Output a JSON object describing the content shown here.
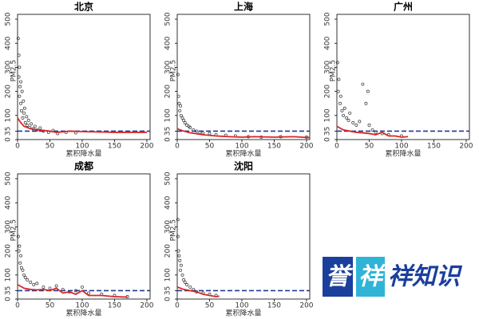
{
  "chart_data": [
    {
      "type": "scatter",
      "title": "北京",
      "x_label": "累积降水量",
      "y_label": "PM2.5",
      "color": "#333333",
      "xlim": [
        0,
        205
      ],
      "ylim": [
        0,
        520
      ],
      "xticks": [
        0,
        50,
        100,
        150,
        200
      ],
      "yticks": [
        0,
        35,
        100,
        200,
        300,
        400,
        500
      ],
      "x": [
        1,
        2,
        2,
        3,
        3,
        4,
        5,
        5,
        6,
        7,
        8,
        9,
        10,
        11,
        12,
        14,
        15,
        17,
        19,
        21,
        24,
        27,
        30,
        35,
        40,
        48,
        55,
        62,
        75,
        90
      ],
      "values": [
        420,
        350,
        260,
        300,
        180,
        220,
        150,
        240,
        120,
        200,
        90,
        160,
        110,
        130,
        70,
        95,
        60,
        80,
        50,
        65,
        45,
        55,
        40,
        48,
        35,
        30,
        38,
        25,
        30,
        28
      ],
      "smooth": {
        "color": "#d62728",
        "x": [
          0,
          5,
          10,
          20,
          30,
          40,
          50,
          60,
          70,
          80,
          100,
          120,
          150,
          200
        ],
        "values": [
          90,
          70,
          55,
          45,
          40,
          38,
          35,
          30,
          32,
          35,
          33,
          32,
          30,
          30
        ]
      },
      "reference_line": {
        "value": 35,
        "color": "#1f3a93"
      }
    },
    {
      "type": "scatter",
      "title": "上海",
      "x_label": "累积降水量",
      "y_label": "PM2.5",
      "color": "#333333",
      "xlim": [
        0,
        205
      ],
      "ylim": [
        0,
        520
      ],
      "xticks": [
        0,
        50,
        100,
        150,
        200
      ],
      "yticks": [
        0,
        35,
        100,
        200,
        300,
        400,
        500
      ],
      "x": [
        1,
        2,
        3,
        4,
        5,
        6,
        8,
        10,
        12,
        15,
        18,
        20,
        25,
        30,
        35,
        40,
        50,
        60,
        75,
        90,
        110,
        130,
        160,
        200
      ],
      "values": [
        270,
        180,
        150,
        120,
        140,
        100,
        90,
        80,
        70,
        60,
        55,
        50,
        40,
        35,
        30,
        28,
        25,
        20,
        18,
        15,
        12,
        10,
        12,
        10
      ],
      "smooth": {
        "color": "#d62728",
        "x": [
          0,
          10,
          20,
          40,
          60,
          80,
          100,
          120,
          150,
          180,
          205
        ],
        "values": [
          45,
          35,
          28,
          20,
          15,
          12,
          10,
          12,
          10,
          12,
          8
        ]
      },
      "reference_line": {
        "value": 35,
        "color": "#1f3a93"
      }
    },
    {
      "type": "scatter",
      "title": "广州",
      "x_label": "累积降水量",
      "y_label": "PM2.5",
      "color": "#333333",
      "xlim": [
        0,
        205
      ],
      "ylim": [
        0,
        520
      ],
      "xticks": [
        0,
        50,
        100,
        150,
        200
      ],
      "yticks": [
        0,
        35,
        100,
        200,
        300,
        400,
        500
      ],
      "x": [
        1,
        2,
        3,
        5,
        6,
        8,
        10,
        12,
        15,
        18,
        20,
        25,
        30,
        35,
        40,
        45,
        48,
        50,
        55,
        60,
        70,
        80,
        100
      ],
      "values": [
        320,
        200,
        250,
        150,
        180,
        120,
        100,
        130,
        90,
        80,
        110,
        70,
        60,
        75,
        230,
        150,
        200,
        60,
        40,
        30,
        25,
        20,
        15
      ],
      "smooth": {
        "color": "#d62728",
        "x": [
          0,
          10,
          20,
          30,
          40,
          50,
          60,
          70,
          80,
          90,
          100,
          110
        ],
        "values": [
          55,
          40,
          35,
          30,
          28,
          25,
          20,
          30,
          15,
          15,
          10,
          12
        ]
      },
      "reference_line": {
        "value": 35,
        "color": "#1f3a93"
      }
    },
    {
      "type": "scatter",
      "title": "成都",
      "x_label": "累积降水量",
      "y_label": "PM2.5",
      "color": "#333333",
      "xlim": [
        0,
        205
      ],
      "ylim": [
        0,
        520
      ],
      "xticks": [
        0,
        50,
        100,
        150,
        200
      ],
      "yticks": [
        0,
        35,
        100,
        200,
        300,
        400,
        500
      ],
      "x": [
        1,
        2,
        3,
        4,
        5,
        6,
        8,
        10,
        12,
        15,
        20,
        25,
        30,
        40,
        50,
        60,
        70,
        80,
        90,
        100,
        110,
        130,
        150,
        170
      ],
      "values": [
        260,
        200,
        220,
        150,
        180,
        130,
        120,
        100,
        90,
        80,
        70,
        60,
        65,
        50,
        45,
        55,
        40,
        30,
        35,
        50,
        25,
        20,
        15,
        10
      ],
      "smooth": {
        "color": "#d62728",
        "x": [
          0,
          10,
          20,
          30,
          40,
          50,
          60,
          70,
          80,
          90,
          100,
          110,
          130,
          150,
          170
        ],
        "values": [
          60,
          45,
          40,
          38,
          40,
          35,
          45,
          25,
          30,
          20,
          35,
          15,
          15,
          10,
          8
        ]
      },
      "reference_line": {
        "value": 35,
        "color": "#1f3a93"
      }
    },
    {
      "type": "scatter",
      "title": "沈阳",
      "x_label": "累积降水量",
      "y_label": "PM2.5",
      "color": "#333333",
      "xlim": [
        0,
        205
      ],
      "ylim": [
        0,
        520
      ],
      "xticks": [
        0,
        50,
        100,
        150,
        200
      ],
      "yticks": [
        0,
        35,
        100,
        200,
        300,
        400,
        500
      ],
      "x": [
        1,
        1,
        2,
        3,
        4,
        5,
        6,
        8,
        10,
        12,
        15,
        20,
        25,
        30,
        40,
        50,
        60
      ],
      "values": [
        330,
        260,
        200,
        180,
        160,
        120,
        140,
        100,
        80,
        70,
        60,
        50,
        40,
        30,
        25,
        20,
        15
      ],
      "smooth": {
        "color": "#d62728",
        "x": [
          0,
          10,
          20,
          30,
          40,
          50,
          60,
          65
        ],
        "values": [
          50,
          40,
          35,
          30,
          20,
          15,
          10,
          12
        ]
      },
      "reference_line": {
        "value": 35,
        "color": "#1f3a93"
      }
    }
  ],
  "watermark": {
    "boxes": [
      "誉",
      "祥"
    ],
    "text": "祥知识"
  }
}
